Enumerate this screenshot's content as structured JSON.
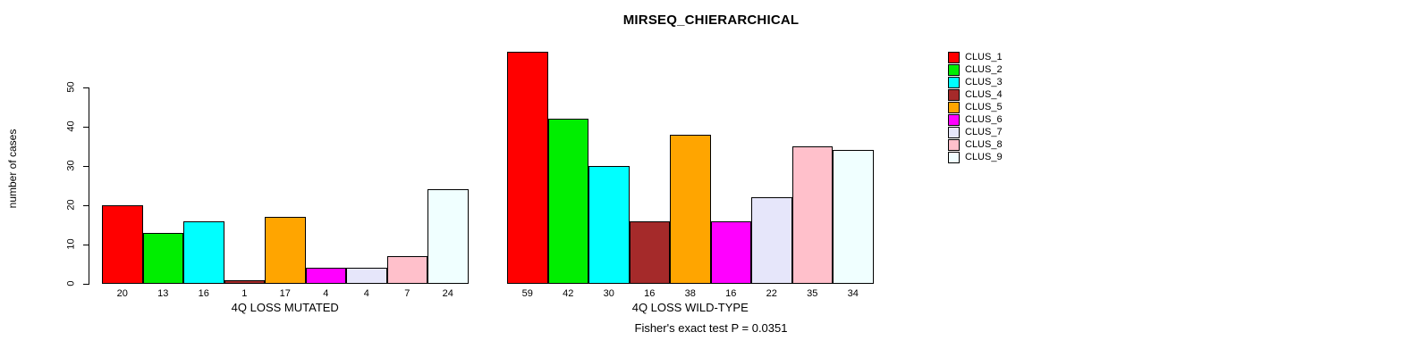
{
  "title": "MIRSEQ_CHIERARCHICAL",
  "annotation": "Fisher's exact test P = 0.0351",
  "chart_data": {
    "type": "bar",
    "title": "MIRSEQ_CHIERARCHICAL",
    "ylabel": "number of cases",
    "xlabel": "",
    "ylim": [
      0,
      60
    ],
    "yticks": [
      0,
      10,
      20,
      30,
      40,
      50
    ],
    "grid": false,
    "legend_position": "right",
    "series_names": [
      "CLUS_1",
      "CLUS_2",
      "CLUS_3",
      "CLUS_4",
      "CLUS_5",
      "CLUS_6",
      "CLUS_7",
      "CLUS_8",
      "CLUS_9"
    ],
    "colors": [
      "#ff0000",
      "#00ee00",
      "#00ffff",
      "#a52a2a",
      "#ffa500",
      "#ff00ff",
      "#e6e6fa",
      "#ffc0cb",
      "#f0ffff"
    ],
    "groups": [
      {
        "label": "4Q LOSS MUTATED",
        "values": [
          20,
          13,
          16,
          1,
          17,
          4,
          4,
          7,
          24
        ]
      },
      {
        "label": "4Q LOSS WILD-TYPE",
        "values": [
          59,
          42,
          30,
          16,
          38,
          16,
          22,
          35,
          34
        ]
      }
    ],
    "bar_value_labels_shown": true,
    "annotation": "Fisher's exact test P = 0.0351"
  }
}
